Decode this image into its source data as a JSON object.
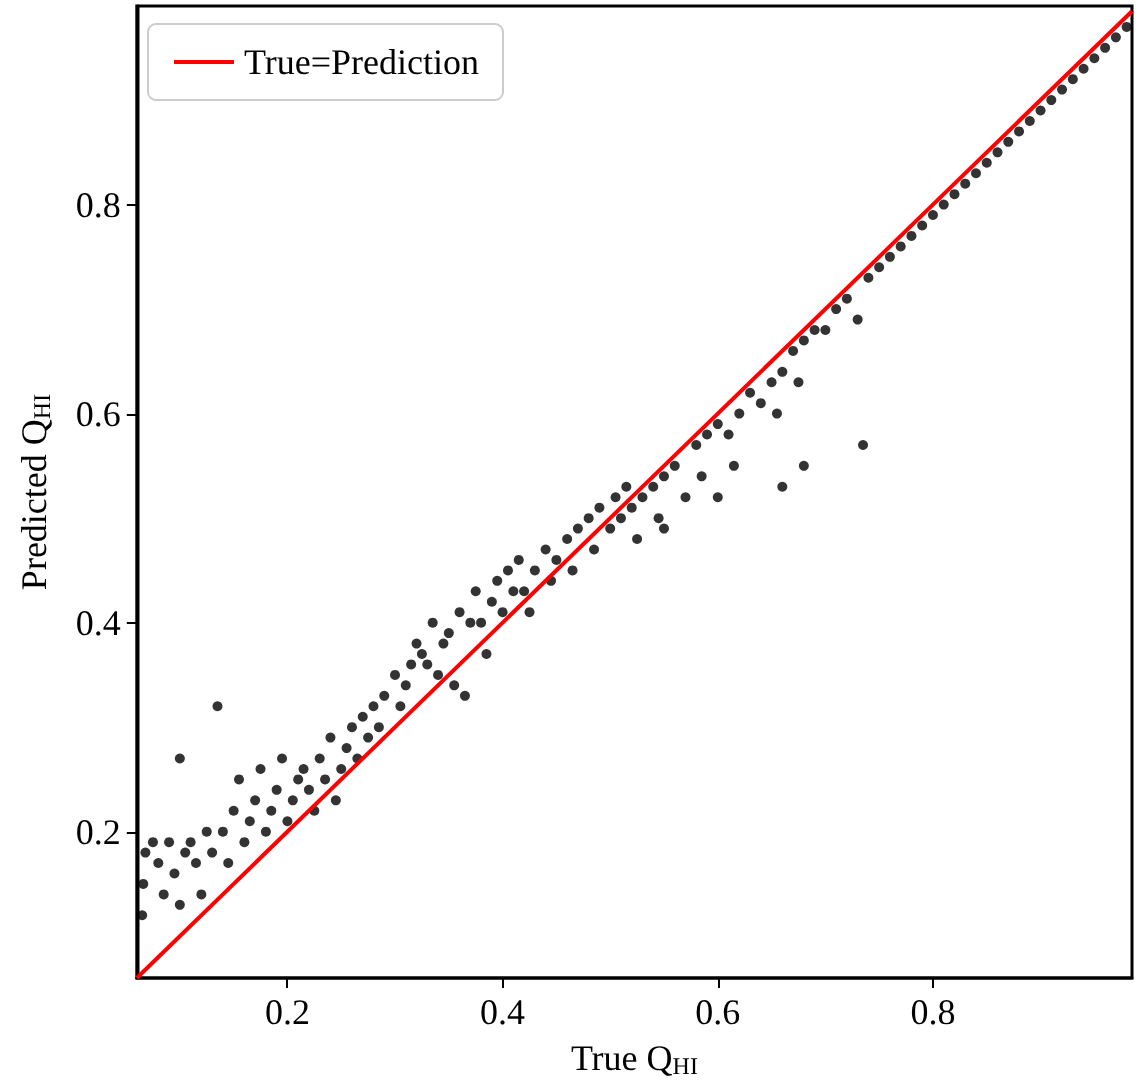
{
  "chart_data": {
    "type": "scatter",
    "xlabel": "True Q$_{HI}$",
    "ylabel": "Predicted Q$_{HI}$",
    "xlim": [
      0.06,
      0.985
    ],
    "ylim": [
      0.06,
      0.99
    ],
    "xticks": [
      0.2,
      0.4,
      0.6,
      0.8
    ],
    "yticks": [
      0.2,
      0.4,
      0.6,
      0.8
    ],
    "grid": false,
    "legend": "top left",
    "series": [
      {
        "color": "#000000",
        "marker": "circle",
        "x": [
          0.065,
          0.066,
          0.068,
          0.075,
          0.08,
          0.085,
          0.09,
          0.095,
          0.1,
          0.1,
          0.105,
          0.11,
          0.115,
          0.12,
          0.125,
          0.13,
          0.135,
          0.14,
          0.145,
          0.15,
          0.155,
          0.16,
          0.165,
          0.17,
          0.175,
          0.18,
          0.185,
          0.19,
          0.195,
          0.2,
          0.205,
          0.21,
          0.215,
          0.22,
          0.225,
          0.23,
          0.235,
          0.24,
          0.245,
          0.25,
          0.255,
          0.26,
          0.265,
          0.27,
          0.275,
          0.28,
          0.285,
          0.29,
          0.3,
          0.305,
          0.31,
          0.315,
          0.32,
          0.325,
          0.33,
          0.335,
          0.34,
          0.345,
          0.35,
          0.355,
          0.36,
          0.365,
          0.37,
          0.375,
          0.38,
          0.385,
          0.39,
          0.395,
          0.4,
          0.405,
          0.41,
          0.415,
          0.42,
          0.425,
          0.43,
          0.44,
          0.445,
          0.45,
          0.46,
          0.465,
          0.47,
          0.48,
          0.485,
          0.49,
          0.5,
          0.505,
          0.51,
          0.515,
          0.52,
          0.525,
          0.53,
          0.54,
          0.545,
          0.55,
          0.55,
          0.56,
          0.57,
          0.58,
          0.585,
          0.59,
          0.6,
          0.6,
          0.61,
          0.615,
          0.62,
          0.63,
          0.64,
          0.65,
          0.655,
          0.66,
          0.66,
          0.67,
          0.675,
          0.68,
          0.68,
          0.69,
          0.7,
          0.71,
          0.72,
          0.73,
          0.735,
          0.74,
          0.75,
          0.76,
          0.77,
          0.78,
          0.79,
          0.8,
          0.81,
          0.82,
          0.83,
          0.84,
          0.85,
          0.86,
          0.87,
          0.88,
          0.89,
          0.9,
          0.91,
          0.92,
          0.93,
          0.94,
          0.95,
          0.96,
          0.97,
          0.98
        ],
        "values": [
          0.12,
          0.15,
          0.18,
          0.19,
          0.17,
          0.14,
          0.19,
          0.16,
          0.13,
          0.27,
          0.18,
          0.19,
          0.17,
          0.14,
          0.2,
          0.18,
          0.32,
          0.2,
          0.17,
          0.22,
          0.25,
          0.19,
          0.21,
          0.23,
          0.26,
          0.2,
          0.22,
          0.24,
          0.27,
          0.21,
          0.23,
          0.25,
          0.26,
          0.24,
          0.22,
          0.27,
          0.25,
          0.29,
          0.23,
          0.26,
          0.28,
          0.3,
          0.27,
          0.31,
          0.29,
          0.32,
          0.3,
          0.33,
          0.35,
          0.32,
          0.34,
          0.36,
          0.38,
          0.37,
          0.36,
          0.4,
          0.35,
          0.38,
          0.39,
          0.34,
          0.41,
          0.33,
          0.4,
          0.43,
          0.4,
          0.37,
          0.42,
          0.44,
          0.41,
          0.45,
          0.43,
          0.46,
          0.43,
          0.41,
          0.45,
          0.47,
          0.44,
          0.46,
          0.48,
          0.45,
          0.49,
          0.5,
          0.47,
          0.51,
          0.49,
          0.52,
          0.5,
          0.53,
          0.51,
          0.48,
          0.52,
          0.53,
          0.5,
          0.54,
          0.49,
          0.55,
          0.52,
          0.57,
          0.54,
          0.58,
          0.59,
          0.52,
          0.58,
          0.55,
          0.6,
          0.62,
          0.61,
          0.63,
          0.6,
          0.64,
          0.53,
          0.66,
          0.63,
          0.67,
          0.55,
          0.68,
          0.68,
          0.7,
          0.71,
          0.69,
          0.57,
          0.73,
          0.74,
          0.75,
          0.76,
          0.77,
          0.78,
          0.79,
          0.8,
          0.81,
          0.82,
          0.83,
          0.84,
          0.85,
          0.86,
          0.87,
          0.88,
          0.89,
          0.9,
          0.91,
          0.92,
          0.93,
          0.94,
          0.95,
          0.96,
          0.97
        ]
      },
      {
        "type": "line",
        "marker": "none",
        "name": "True=Prediction",
        "color": "#ff0000",
        "x": [
          0.06,
          0.985
        ],
        "values": [
          0.06,
          0.985
        ]
      }
    ]
  }
}
